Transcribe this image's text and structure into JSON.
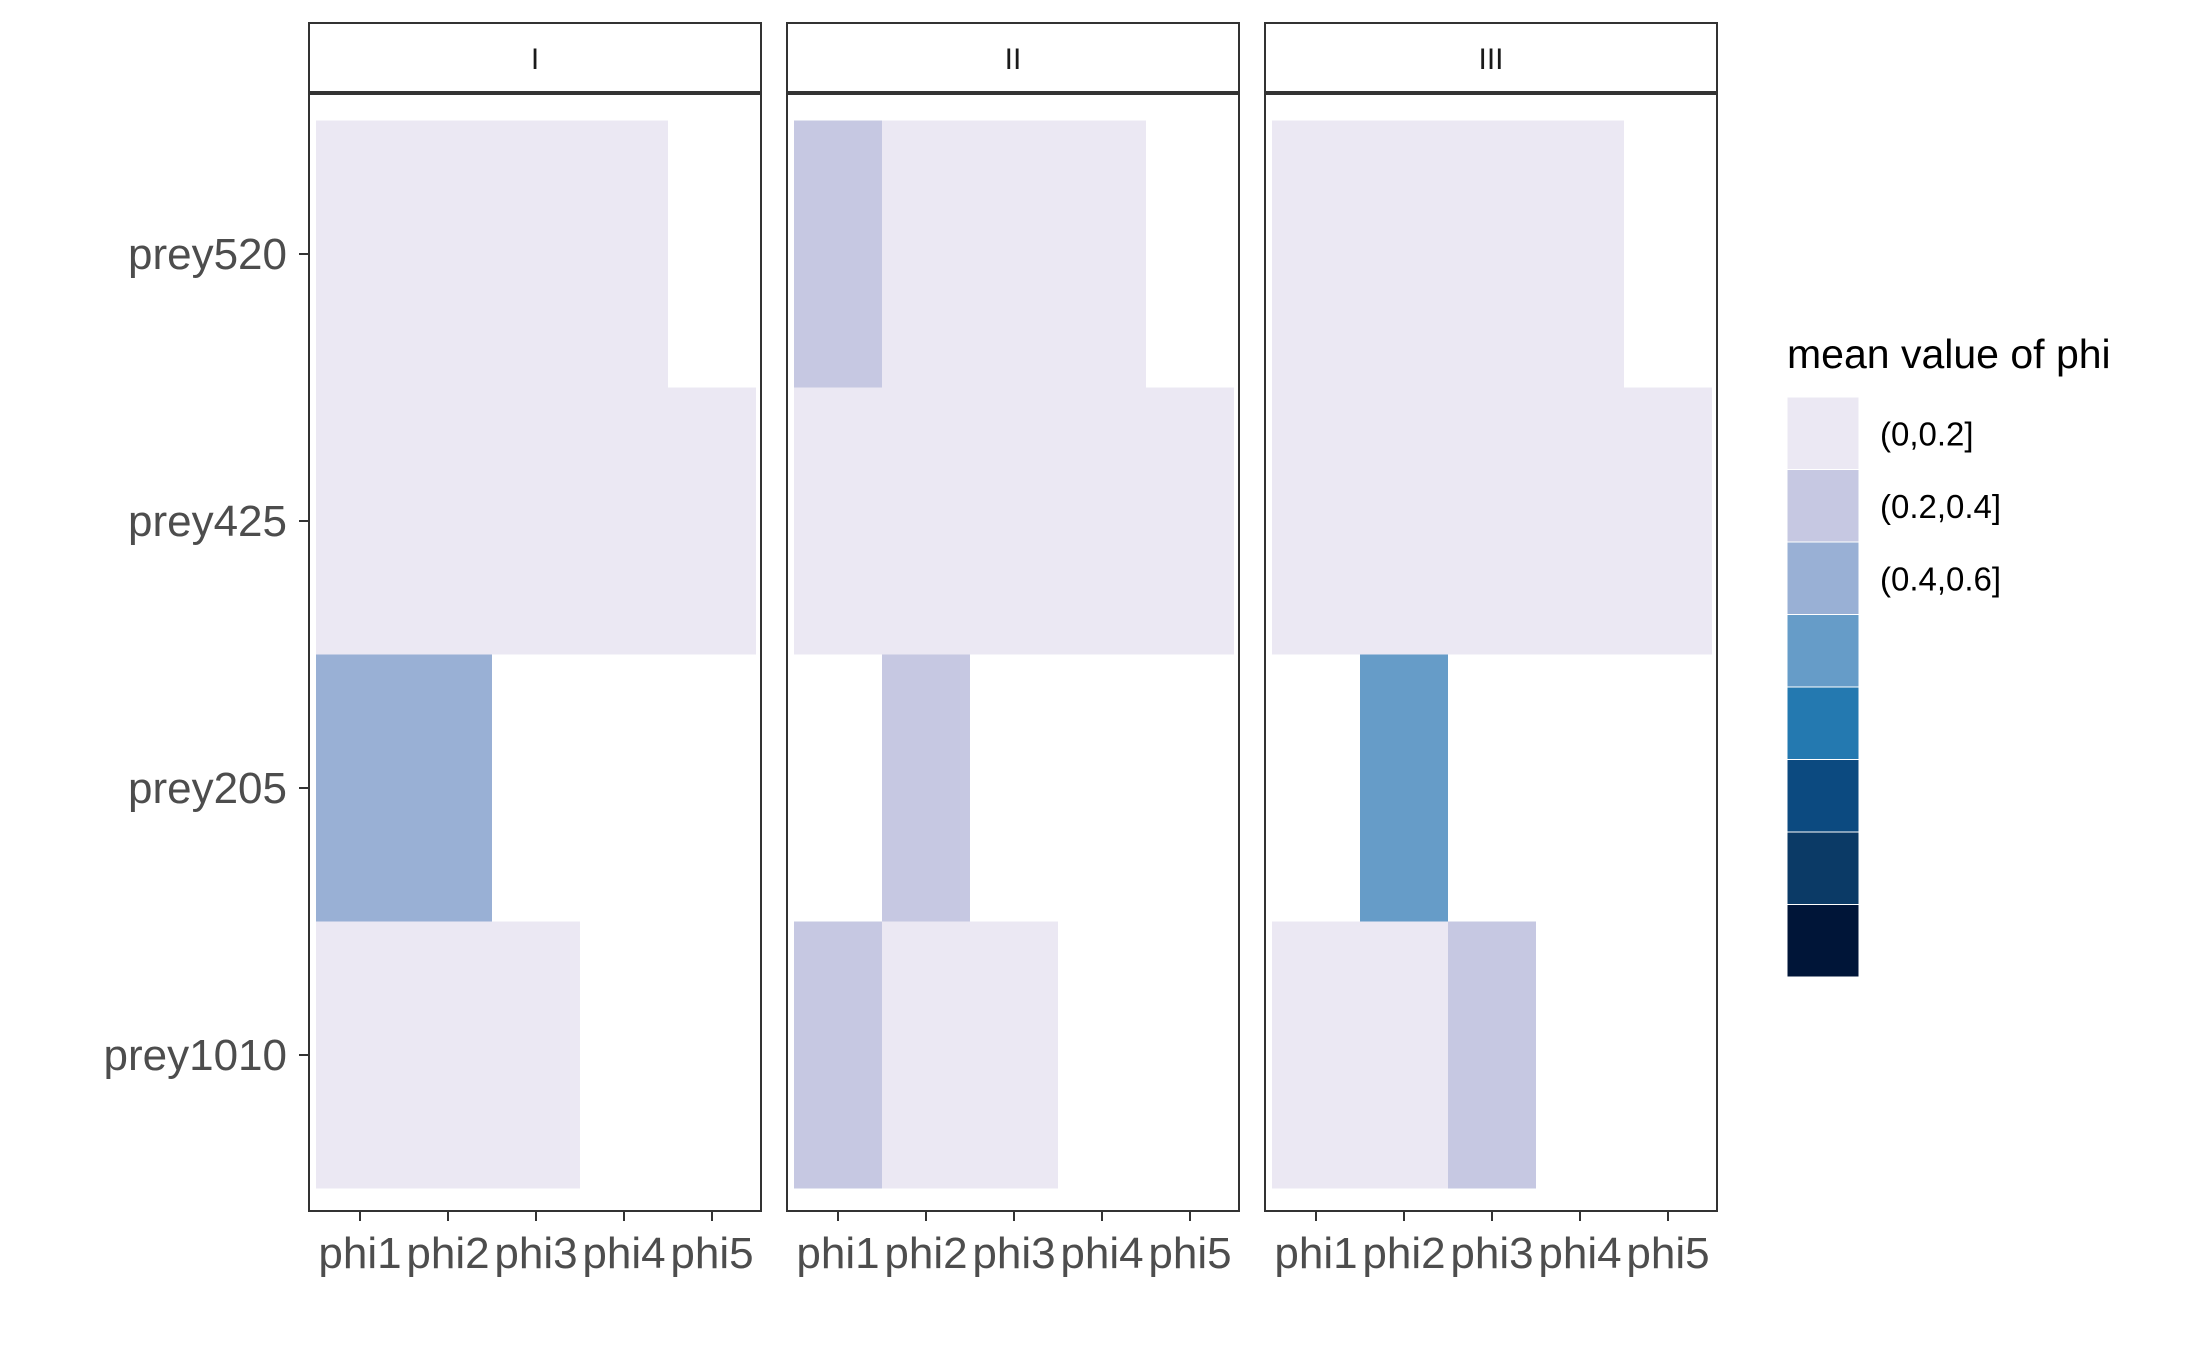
{
  "chart_data": {
    "type": "heatmap",
    "facets": [
      "I",
      "II",
      "III"
    ],
    "x_categories": [
      "phi1",
      "phi2",
      "phi3",
      "phi4",
      "phi5"
    ],
    "y_categories": [
      "prey520",
      "prey425",
      "prey205",
      "prey1010"
    ],
    "legend": {
      "title": "mean value of phi",
      "placement": "right",
      "bins": [
        {
          "label": "(0,0.2]",
          "color": "#ebe8f3"
        },
        {
          "label": "(0.2,0.4]",
          "color": "#c6c8e2"
        },
        {
          "label": "(0.4,0.6]",
          "color": "#99b0d5"
        },
        {
          "label": "",
          "color": "#669cc8"
        },
        {
          "label": "",
          "color": "#2479b0"
        },
        {
          "label": "",
          "color": "#0c4a80"
        },
        {
          "label": "",
          "color": "#0b3a66"
        },
        {
          "label": "",
          "color": "#001538"
        }
      ]
    },
    "cells": [
      {
        "facet": "I",
        "y": "prey520",
        "x": "phi1",
        "bin": 0
      },
      {
        "facet": "I",
        "y": "prey520",
        "x": "phi2",
        "bin": 0
      },
      {
        "facet": "I",
        "y": "prey520",
        "x": "phi3",
        "bin": 0
      },
      {
        "facet": "I",
        "y": "prey520",
        "x": "phi4",
        "bin": 0
      },
      {
        "facet": "I",
        "y": "prey425",
        "x": "phi1",
        "bin": 0
      },
      {
        "facet": "I",
        "y": "prey425",
        "x": "phi2",
        "bin": 0
      },
      {
        "facet": "I",
        "y": "prey425",
        "x": "phi3",
        "bin": 0
      },
      {
        "facet": "I",
        "y": "prey425",
        "x": "phi4",
        "bin": 0
      },
      {
        "facet": "I",
        "y": "prey425",
        "x": "phi5",
        "bin": 0
      },
      {
        "facet": "I",
        "y": "prey205",
        "x": "phi1",
        "bin": 2
      },
      {
        "facet": "I",
        "y": "prey205",
        "x": "phi2",
        "bin": 2
      },
      {
        "facet": "I",
        "y": "prey1010",
        "x": "phi1",
        "bin": 0
      },
      {
        "facet": "I",
        "y": "prey1010",
        "x": "phi2",
        "bin": 0
      },
      {
        "facet": "I",
        "y": "prey1010",
        "x": "phi3",
        "bin": 0
      },
      {
        "facet": "II",
        "y": "prey520",
        "x": "phi1",
        "bin": 1
      },
      {
        "facet": "II",
        "y": "prey520",
        "x": "phi2",
        "bin": 0
      },
      {
        "facet": "II",
        "y": "prey520",
        "x": "phi3",
        "bin": 0
      },
      {
        "facet": "II",
        "y": "prey520",
        "x": "phi4",
        "bin": 0
      },
      {
        "facet": "II",
        "y": "prey425",
        "x": "phi1",
        "bin": 0
      },
      {
        "facet": "II",
        "y": "prey425",
        "x": "phi2",
        "bin": 0
      },
      {
        "facet": "II",
        "y": "prey425",
        "x": "phi3",
        "bin": 0
      },
      {
        "facet": "II",
        "y": "prey425",
        "x": "phi4",
        "bin": 0
      },
      {
        "facet": "II",
        "y": "prey425",
        "x": "phi5",
        "bin": 0
      },
      {
        "facet": "II",
        "y": "prey205",
        "x": "phi2",
        "bin": 1
      },
      {
        "facet": "II",
        "y": "prey1010",
        "x": "phi1",
        "bin": 1
      },
      {
        "facet": "II",
        "y": "prey1010",
        "x": "phi2",
        "bin": 0
      },
      {
        "facet": "II",
        "y": "prey1010",
        "x": "phi3",
        "bin": 0
      },
      {
        "facet": "III",
        "y": "prey520",
        "x": "phi1",
        "bin": 0
      },
      {
        "facet": "III",
        "y": "prey520",
        "x": "phi2",
        "bin": 0
      },
      {
        "facet": "III",
        "y": "prey520",
        "x": "phi3",
        "bin": 0
      },
      {
        "facet": "III",
        "y": "prey520",
        "x": "phi4",
        "bin": 0
      },
      {
        "facet": "III",
        "y": "prey425",
        "x": "phi1",
        "bin": 0
      },
      {
        "facet": "III",
        "y": "prey425",
        "x": "phi2",
        "bin": 0
      },
      {
        "facet": "III",
        "y": "prey425",
        "x": "phi3",
        "bin": 0
      },
      {
        "facet": "III",
        "y": "prey425",
        "x": "phi4",
        "bin": 0
      },
      {
        "facet": "III",
        "y": "prey425",
        "x": "phi5",
        "bin": 0
      },
      {
        "facet": "III",
        "y": "prey205",
        "x": "phi2",
        "bin": 3
      },
      {
        "facet": "III",
        "y": "prey1010",
        "x": "phi1",
        "bin": 0
      },
      {
        "facet": "III",
        "y": "prey1010",
        "x": "phi2",
        "bin": 0
      },
      {
        "facet": "III",
        "y": "prey1010",
        "x": "phi3",
        "bin": 1
      }
    ]
  }
}
